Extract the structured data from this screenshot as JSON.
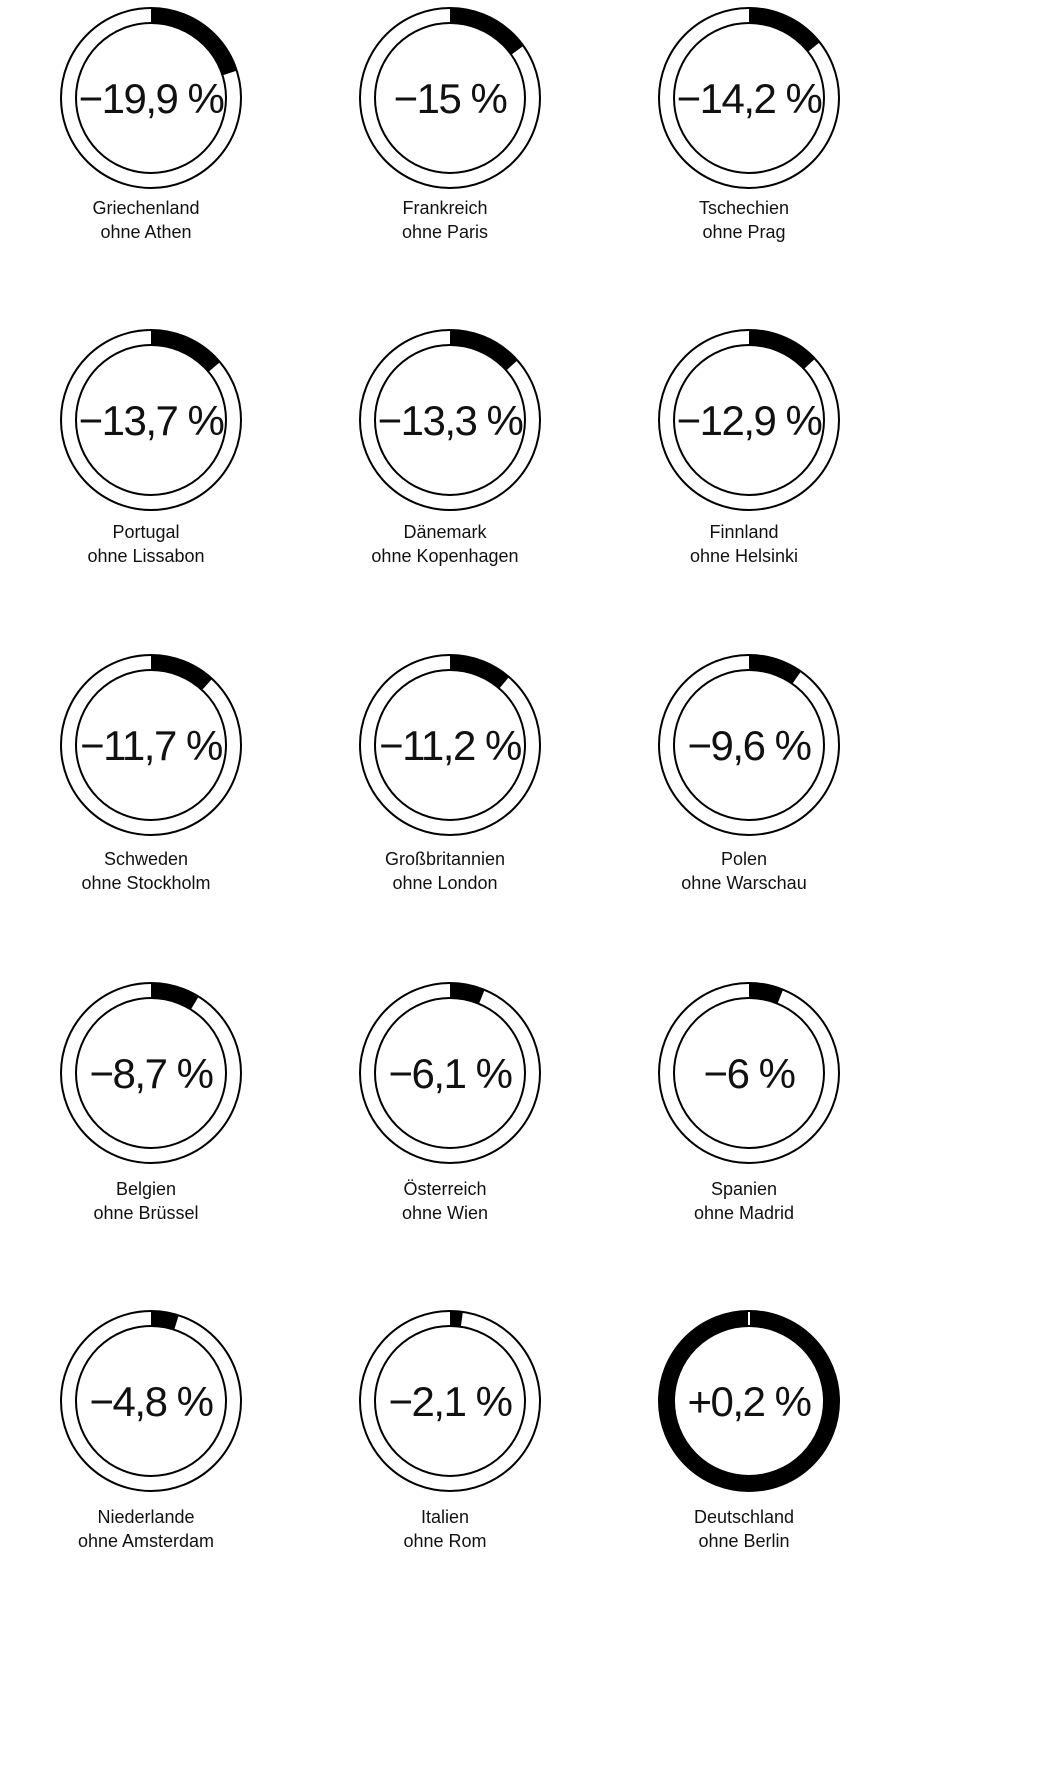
{
  "chart_data": {
    "type": "donut-grid",
    "colors": {
      "fill": "#000000",
      "ring": "#000000",
      "background": "#ffffff"
    },
    "items": [
      {
        "value": -19.9,
        "label": "−19,9 %",
        "country": "Griechenland",
        "sub": "ohne Athen"
      },
      {
        "value": -15,
        "label": "−15 %",
        "country": "Frankreich",
        "sub": "ohne Paris"
      },
      {
        "value": -14.2,
        "label": "−14,2 %",
        "country": "Tschechien",
        "sub": "ohne Prag"
      },
      {
        "value": -13.7,
        "label": "−13,7 %",
        "country": "Portugal",
        "sub": "ohne Lissabon"
      },
      {
        "value": -13.3,
        "label": "−13,3 %",
        "country": "Dänemark",
        "sub": "ohne Kopenhagen"
      },
      {
        "value": -12.9,
        "label": "−12,9 %",
        "country": "Finnland",
        "sub": "ohne Helsinki"
      },
      {
        "value": -11.7,
        "label": "−11,7 %",
        "country": "Schweden",
        "sub": "ohne Stockholm"
      },
      {
        "value": -11.2,
        "label": "−11,2 %",
        "country": "Großbritannien",
        "sub": "ohne London"
      },
      {
        "value": -9.6,
        "label": "−9,6 %",
        "country": "Polen",
        "sub": "ohne Warschau"
      },
      {
        "value": -8.7,
        "label": "−8,7 %",
        "country": "Belgien",
        "sub": "ohne Brüssel"
      },
      {
        "value": -6.1,
        "label": "−6,1 %",
        "country": "Österreich",
        "sub": "ohne Wien"
      },
      {
        "value": -6,
        "label": "−6 %",
        "country": "Spanien",
        "sub": "ohne Madrid"
      },
      {
        "value": -4.8,
        "label": "−4,8 %",
        "country": "Niederlande",
        "sub": "ohne Amsterdam"
      },
      {
        "value": -2.1,
        "label": "−2,1 %",
        "country": "Italien",
        "sub": "ohne Rom"
      },
      {
        "value": 0.2,
        "label": "+0,2 %",
        "country": "Deutschland",
        "sub": "ohne Berlin"
      }
    ]
  }
}
